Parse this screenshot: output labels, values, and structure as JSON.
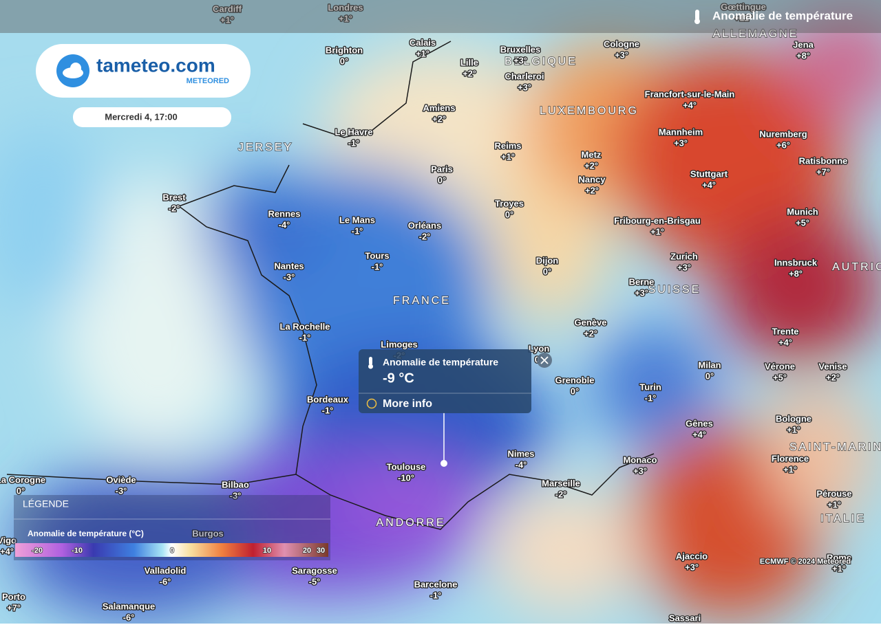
{
  "header": {
    "title": "Anomalie de température"
  },
  "logo": {
    "name": "tameteo.com",
    "brand": "METEORED"
  },
  "date": "Mercredi 4, 17:00",
  "legend": {
    "heading": "LÉGENDE",
    "title": "Anomalie de température (°C)",
    "scale_labels": [
      "-20",
      "-10",
      "0",
      "10",
      "20",
      "30"
    ]
  },
  "popup": {
    "title": "Anomalie de température",
    "value": "-9 °C",
    "link": "More info"
  },
  "credit": "ECMWF © 2024 Meteored",
  "countries": [
    "ALLEMAGNE",
    "BELGIQUE",
    "LUXEMBOURG",
    "FRANCE",
    "SUISSE",
    "AUTRICHE",
    "JERSEY",
    "ANDORRE",
    "SAINT-MARIN",
    "ITALIE"
  ],
  "cities": [
    {
      "name": "Cardiff",
      "value": "+1°"
    },
    {
      "name": "Londres",
      "value": "+1°"
    },
    {
      "name": "Gœttingue",
      "value": "+11°"
    },
    {
      "name": "Brighton",
      "value": "0°"
    },
    {
      "name": "Calais",
      "value": "+1°"
    },
    {
      "name": "Bruxelles",
      "value": "+3°"
    },
    {
      "name": "Lille",
      "value": "+2°"
    },
    {
      "name": "Charleroi",
      "value": "+3°"
    },
    {
      "name": "Cologne",
      "value": "+3°"
    },
    {
      "name": "Jena",
      "value": "+8°"
    },
    {
      "name": "Amiens",
      "value": "+2°"
    },
    {
      "name": "Le Havre",
      "value": "-1°"
    },
    {
      "name": "Francfort-sur-le-Main",
      "value": "+4°"
    },
    {
      "name": "Reims",
      "value": "+1°"
    },
    {
      "name": "Mannheim",
      "value": "+3°"
    },
    {
      "name": "Nuremberg",
      "value": "+6°"
    },
    {
      "name": "Metz",
      "value": "+2°"
    },
    {
      "name": "Paris",
      "value": "0°"
    },
    {
      "name": "Brest",
      "value": "-2°"
    },
    {
      "name": "Nancy",
      "value": "+2°"
    },
    {
      "name": "Stuttgart",
      "value": "+4°"
    },
    {
      "name": "Ratisbonne",
      "value": "+7°"
    },
    {
      "name": "Rennes",
      "value": "-4°"
    },
    {
      "name": "Le Mans",
      "value": "-1°"
    },
    {
      "name": "Orléans",
      "value": "-2°"
    },
    {
      "name": "Troyes",
      "value": "0°"
    },
    {
      "name": "Fribourg-en-Brisgau",
      "value": "+1°"
    },
    {
      "name": "Munich",
      "value": "+5°"
    },
    {
      "name": "Tours",
      "value": "-1°"
    },
    {
      "name": "Nantes",
      "value": "-3°"
    },
    {
      "name": "Dijon",
      "value": "0°"
    },
    {
      "name": "Zurich",
      "value": "+3°"
    },
    {
      "name": "Innsbruck",
      "value": "+8°"
    },
    {
      "name": "Berne",
      "value": "+3°"
    },
    {
      "name": "La Rochelle",
      "value": "-1°"
    },
    {
      "name": "Genève",
      "value": "+2°"
    },
    {
      "name": "Trente",
      "value": "+4°"
    },
    {
      "name": "Limoges",
      "value": "-2°"
    },
    {
      "name": "Lyon",
      "value": "0°"
    },
    {
      "name": "Milan",
      "value": "0°"
    },
    {
      "name": "Vérone",
      "value": "+5°"
    },
    {
      "name": "Venise",
      "value": "+2°"
    },
    {
      "name": "Grenoble",
      "value": "0°"
    },
    {
      "name": "Turin",
      "value": "-1°"
    },
    {
      "name": "Bordeaux",
      "value": "-1°"
    },
    {
      "name": "Gênes",
      "value": "+4°"
    },
    {
      "name": "Bologne",
      "value": "+1°"
    },
    {
      "name": "Nimes",
      "value": "-4°"
    },
    {
      "name": "Toulouse",
      "value": "-10°"
    },
    {
      "name": "Florence",
      "value": "+1°"
    },
    {
      "name": "Monaco",
      "value": "+3°"
    },
    {
      "name": "La Corogne",
      "value": "0°"
    },
    {
      "name": "Oviède",
      "value": "-3°"
    },
    {
      "name": "Bilbao",
      "value": "-3°"
    },
    {
      "name": "Marseille",
      "value": "-2°"
    },
    {
      "name": "Pérouse",
      "value": "+1°"
    },
    {
      "name": "Burgos"
    },
    {
      "name": "Vigo",
      "value": "+4°"
    },
    {
      "name": "Ajaccio",
      "value": "+3°"
    },
    {
      "name": "Rome",
      "value": "+1°"
    },
    {
      "name": "Valladolid",
      "value": "-6°"
    },
    {
      "name": "Saragosse",
      "value": "-5°"
    },
    {
      "name": "Barcelone",
      "value": "-1°"
    },
    {
      "name": "Porto",
      "value": "+7°"
    },
    {
      "name": "Salamanque",
      "value": "-6°"
    },
    {
      "name": "Sassari"
    }
  ]
}
